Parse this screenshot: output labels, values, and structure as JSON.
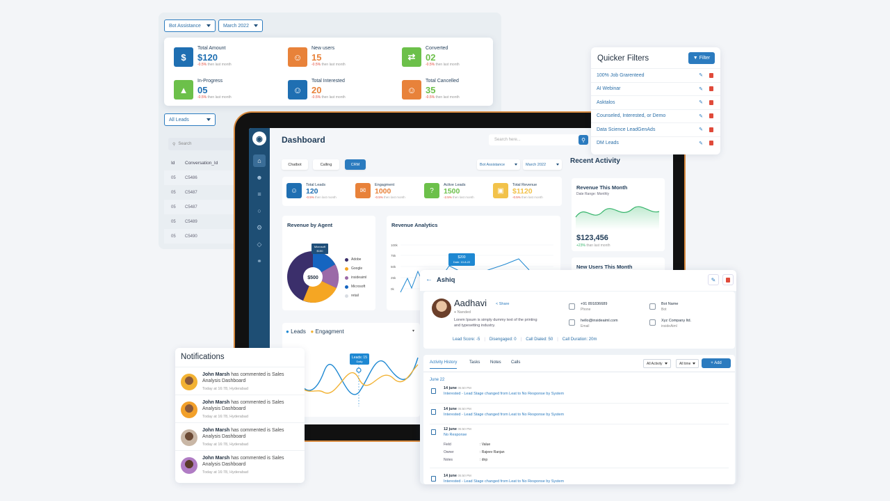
{
  "top_panel": {
    "filter1": "Bot Assistance",
    "filter2": "March 2022",
    "leads_filter": "All Leads",
    "stats": [
      {
        "label": "Total Amount",
        "value": "$120",
        "change": "-0.5%",
        "suffix": "then last month",
        "color": "#1f6fb2",
        "val_color": "#1f6fb2",
        "icon": "dollar-icon"
      },
      {
        "label": "New users",
        "value": "15",
        "change": "-0.5%",
        "suffix": "then last month",
        "color": "#e8823a",
        "val_color": "#e8823a",
        "icon": "user-icon"
      },
      {
        "label": "Converted",
        "value": "02",
        "change": "-0.5%",
        "suffix": "then last month",
        "color": "#6cc04a",
        "val_color": "#6cc04a",
        "icon": "convert-icon"
      },
      {
        "label": "In-Progress",
        "value": "05",
        "change": "-0.5%",
        "suffix": "then last month",
        "color": "#6cc04a",
        "val_color": "#1f6fb2",
        "icon": "progress-icon"
      },
      {
        "label": "Total Interested",
        "value": "20",
        "change": "-0.5%",
        "suffix": "then last month",
        "color": "#1f6fb2",
        "val_color": "#e8823a",
        "icon": "interested-icon"
      },
      {
        "label": "Total Cancelled",
        "value": "35",
        "change": "-0.5%",
        "suffix": "then last month",
        "color": "#e8823a",
        "val_color": "#6cc04a",
        "icon": "cancelled-icon"
      }
    ],
    "table": {
      "search_placeholder": "Search",
      "col_id": "Id",
      "col_conv": "Conversation_Id",
      "rows": [
        {
          "id": "05",
          "conv": "C5486"
        },
        {
          "id": "05",
          "conv": "C5487"
        },
        {
          "id": "05",
          "conv": "C5487"
        },
        {
          "id": "05",
          "conv": "C5489"
        },
        {
          "id": "05",
          "conv": "C5490"
        }
      ]
    }
  },
  "dashboard": {
    "title": "Dashboard",
    "search_placeholder": "Search here...",
    "tabs": [
      "Chatbot",
      "Calling",
      "CRM"
    ],
    "filter1": "Bot Assistance",
    "filter2": "March 2022",
    "kpis": [
      {
        "label": "Total Leads",
        "value": "120",
        "change": "-0.5%",
        "suffix": "then last month",
        "color": "#1f6fb2",
        "icon": "leads-icon"
      },
      {
        "label": "Engagment",
        "value": "1000",
        "change": "-0.5%",
        "suffix": "then last month",
        "color": "#e8823a",
        "icon": "chat-icon"
      },
      {
        "label": "Active Leads",
        "value": "1500",
        "change": "-2.5%",
        "suffix": "then last month",
        "color": "#6cc04a",
        "icon": "question-icon"
      },
      {
        "label": "Total Revenue",
        "value": "$1120",
        "change": "-0.5%",
        "suffix": "then last month",
        "color": "#f2c24a",
        "icon": "ticket-icon"
      }
    ],
    "recent_activity": "Recent Activity",
    "rev_agent": {
      "title": "Revenue by Agent",
      "center": "$500",
      "callout_name": "Microsoft",
      "callout_value": "$150",
      "legend": [
        {
          "name": "Adobe",
          "color": "#3b2f6b"
        },
        {
          "name": "Google",
          "color": "#f5a623"
        },
        {
          "name": "insideaiml",
          "color": "#9b6aa8"
        },
        {
          "name": "Microsoft",
          "color": "#1565c0"
        },
        {
          "name": "retail",
          "color": "#d9dde3"
        }
      ]
    },
    "rev_analytics": {
      "title": "Revenue Analytics",
      "yticks": [
        "100k",
        "75k",
        "50k",
        "25k",
        "0k"
      ],
      "tooltip_value": "$200",
      "tooltip_date": "Date: 10-8-22"
    },
    "rev_month": {
      "title": "Revenue This Month",
      "range": "Date Range: Monthly",
      "amount": "$123,456",
      "change": "+23%",
      "change_suffix": "than last month"
    },
    "new_users_title": "New Users This Month",
    "leads_chart": {
      "legend1": "Leads",
      "legend2": "Engagment",
      "tooltip_title": "Leads: 15",
      "tooltip_sub": "Daily"
    }
  },
  "quick_filters": {
    "title": "Quicker Filters",
    "button": "Filter",
    "items": [
      "100% Job Grarenteed",
      "AI Webinar",
      "Asktalos",
      "Counseled, Interested, or Demo",
      "Data Science LeadGenAds",
      "DM Leads"
    ]
  },
  "contact": {
    "header_name": "Ashiq",
    "name": "Aadhavi",
    "share": "Share",
    "location": "Nanded",
    "description": "Lorem Ipsum is simply dummy text of the printing and typesetting industry.",
    "phone": "+91 891836689",
    "phone_label": "Phone",
    "email": "hello@insideaiml.com",
    "email_label": "Email",
    "bot_name": "Bot Name",
    "bot_label": "Bot",
    "company": "Xyz Company ltd.",
    "company_label": "insideAiml",
    "lead_score": "Lead Score: -5",
    "disengaged": "Disengaged: 0",
    "calls_dialed": "Call Dialed:  50",
    "call_duration": "Call Duration:  20m",
    "tabs": [
      "Activity History",
      "Tasks",
      "Notes",
      "Calls"
    ],
    "activity_select": "All Activity",
    "time_select": "All time",
    "add_button": "+ Add",
    "date_group": "June 22",
    "entries": [
      {
        "date": "14 june",
        "time": "05:50 PM",
        "status": "Interested",
        "text": "- Lead Stage changed from Leat to No Response by System"
      },
      {
        "date": "14 june",
        "time": "05:50 PM",
        "status": "Interested",
        "text": "- Lead Stage changed from Leat to No Response by System"
      },
      {
        "date": "12 june",
        "time": "05:50 PM",
        "status": "No Response",
        "text": ""
      },
      {
        "date": "14 june",
        "time": "05:50 PM",
        "status": "Interested",
        "text": "- Lead Stage changed from Leat to No Response by System"
      }
    ],
    "kv": [
      {
        "k": "Field",
        "v": ": Value"
      },
      {
        "k": "Owner",
        "v": ": Rajeev Ranjan"
      },
      {
        "k": "Notes",
        "v": ": dnp"
      }
    ]
  },
  "notifications": {
    "title": "Notifications",
    "items": [
      {
        "name": "John Marsh",
        "text": "has commented is Sales Analysis Dashboard",
        "time": "Today at 16:78, Hyderabad",
        "color": "#f2b233"
      },
      {
        "name": "John Marsh",
        "text": "has commented is Sales Analysis Dashboard",
        "time": "Today at 16:78, Hyderabad",
        "color": "#f2a02a"
      },
      {
        "name": "John Marsh",
        "text": "has commented is Sales Analysis Dashboard",
        "time": "Today at 16:78, Hyderabad",
        "color": "#c9b7a6"
      },
      {
        "name": "John Marsh",
        "text": "has commented is Sales Analysis Dashboard",
        "time": "Today at 16:78, Hyderabad",
        "color": "#b07cc4"
      }
    ]
  }
}
